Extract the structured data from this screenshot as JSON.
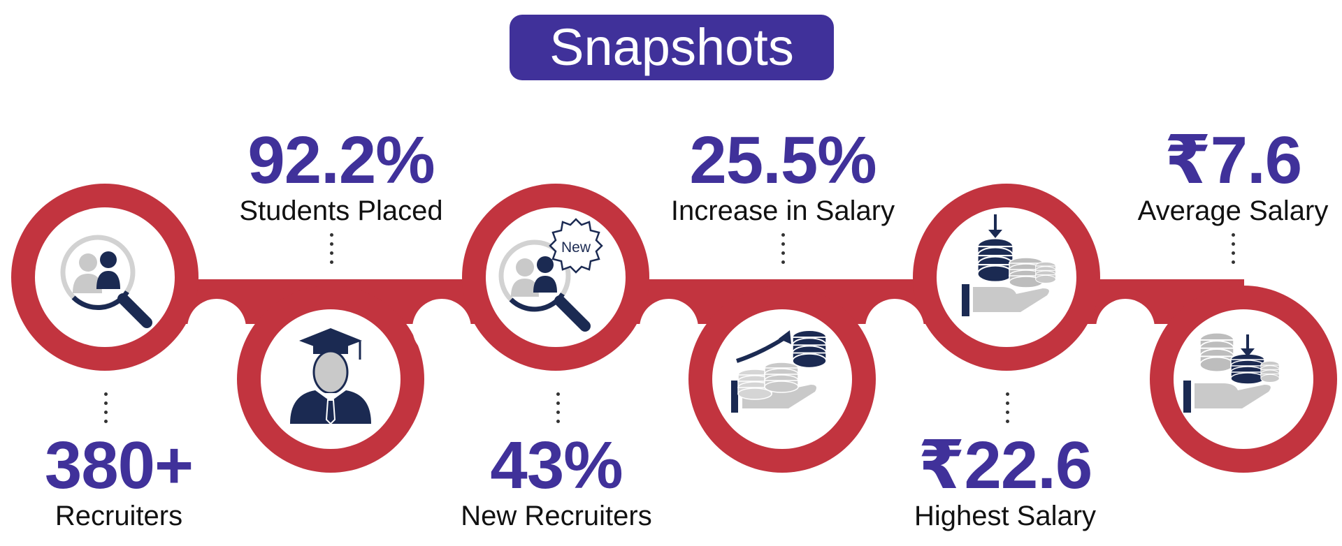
{
  "title": "Snapshots",
  "colors": {
    "accent": "#40319a",
    "ring": "#c2343f",
    "icon_dark": "#1b2a52",
    "icon_grey": "#c9c9c9",
    "text": "#111111"
  },
  "stats": [
    {
      "value": "380+",
      "label": "Recruiters",
      "icon": "recruiter-search-icon"
    },
    {
      "value": "92.2%",
      "label": "Students Placed",
      "icon": "graduate-icon"
    },
    {
      "value": "43%",
      "label": "New Recruiters",
      "icon": "new-recruiter-search-icon",
      "badge": "New"
    },
    {
      "value": "25.5%",
      "label": "Increase in Salary",
      "icon": "salary-increase-icon"
    },
    {
      "value": "₹22.6",
      "label": "Highest Salary",
      "icon": "highest-salary-icon"
    },
    {
      "value": "₹7.6",
      "label": "Average Salary",
      "icon": "average-salary-icon"
    }
  ]
}
